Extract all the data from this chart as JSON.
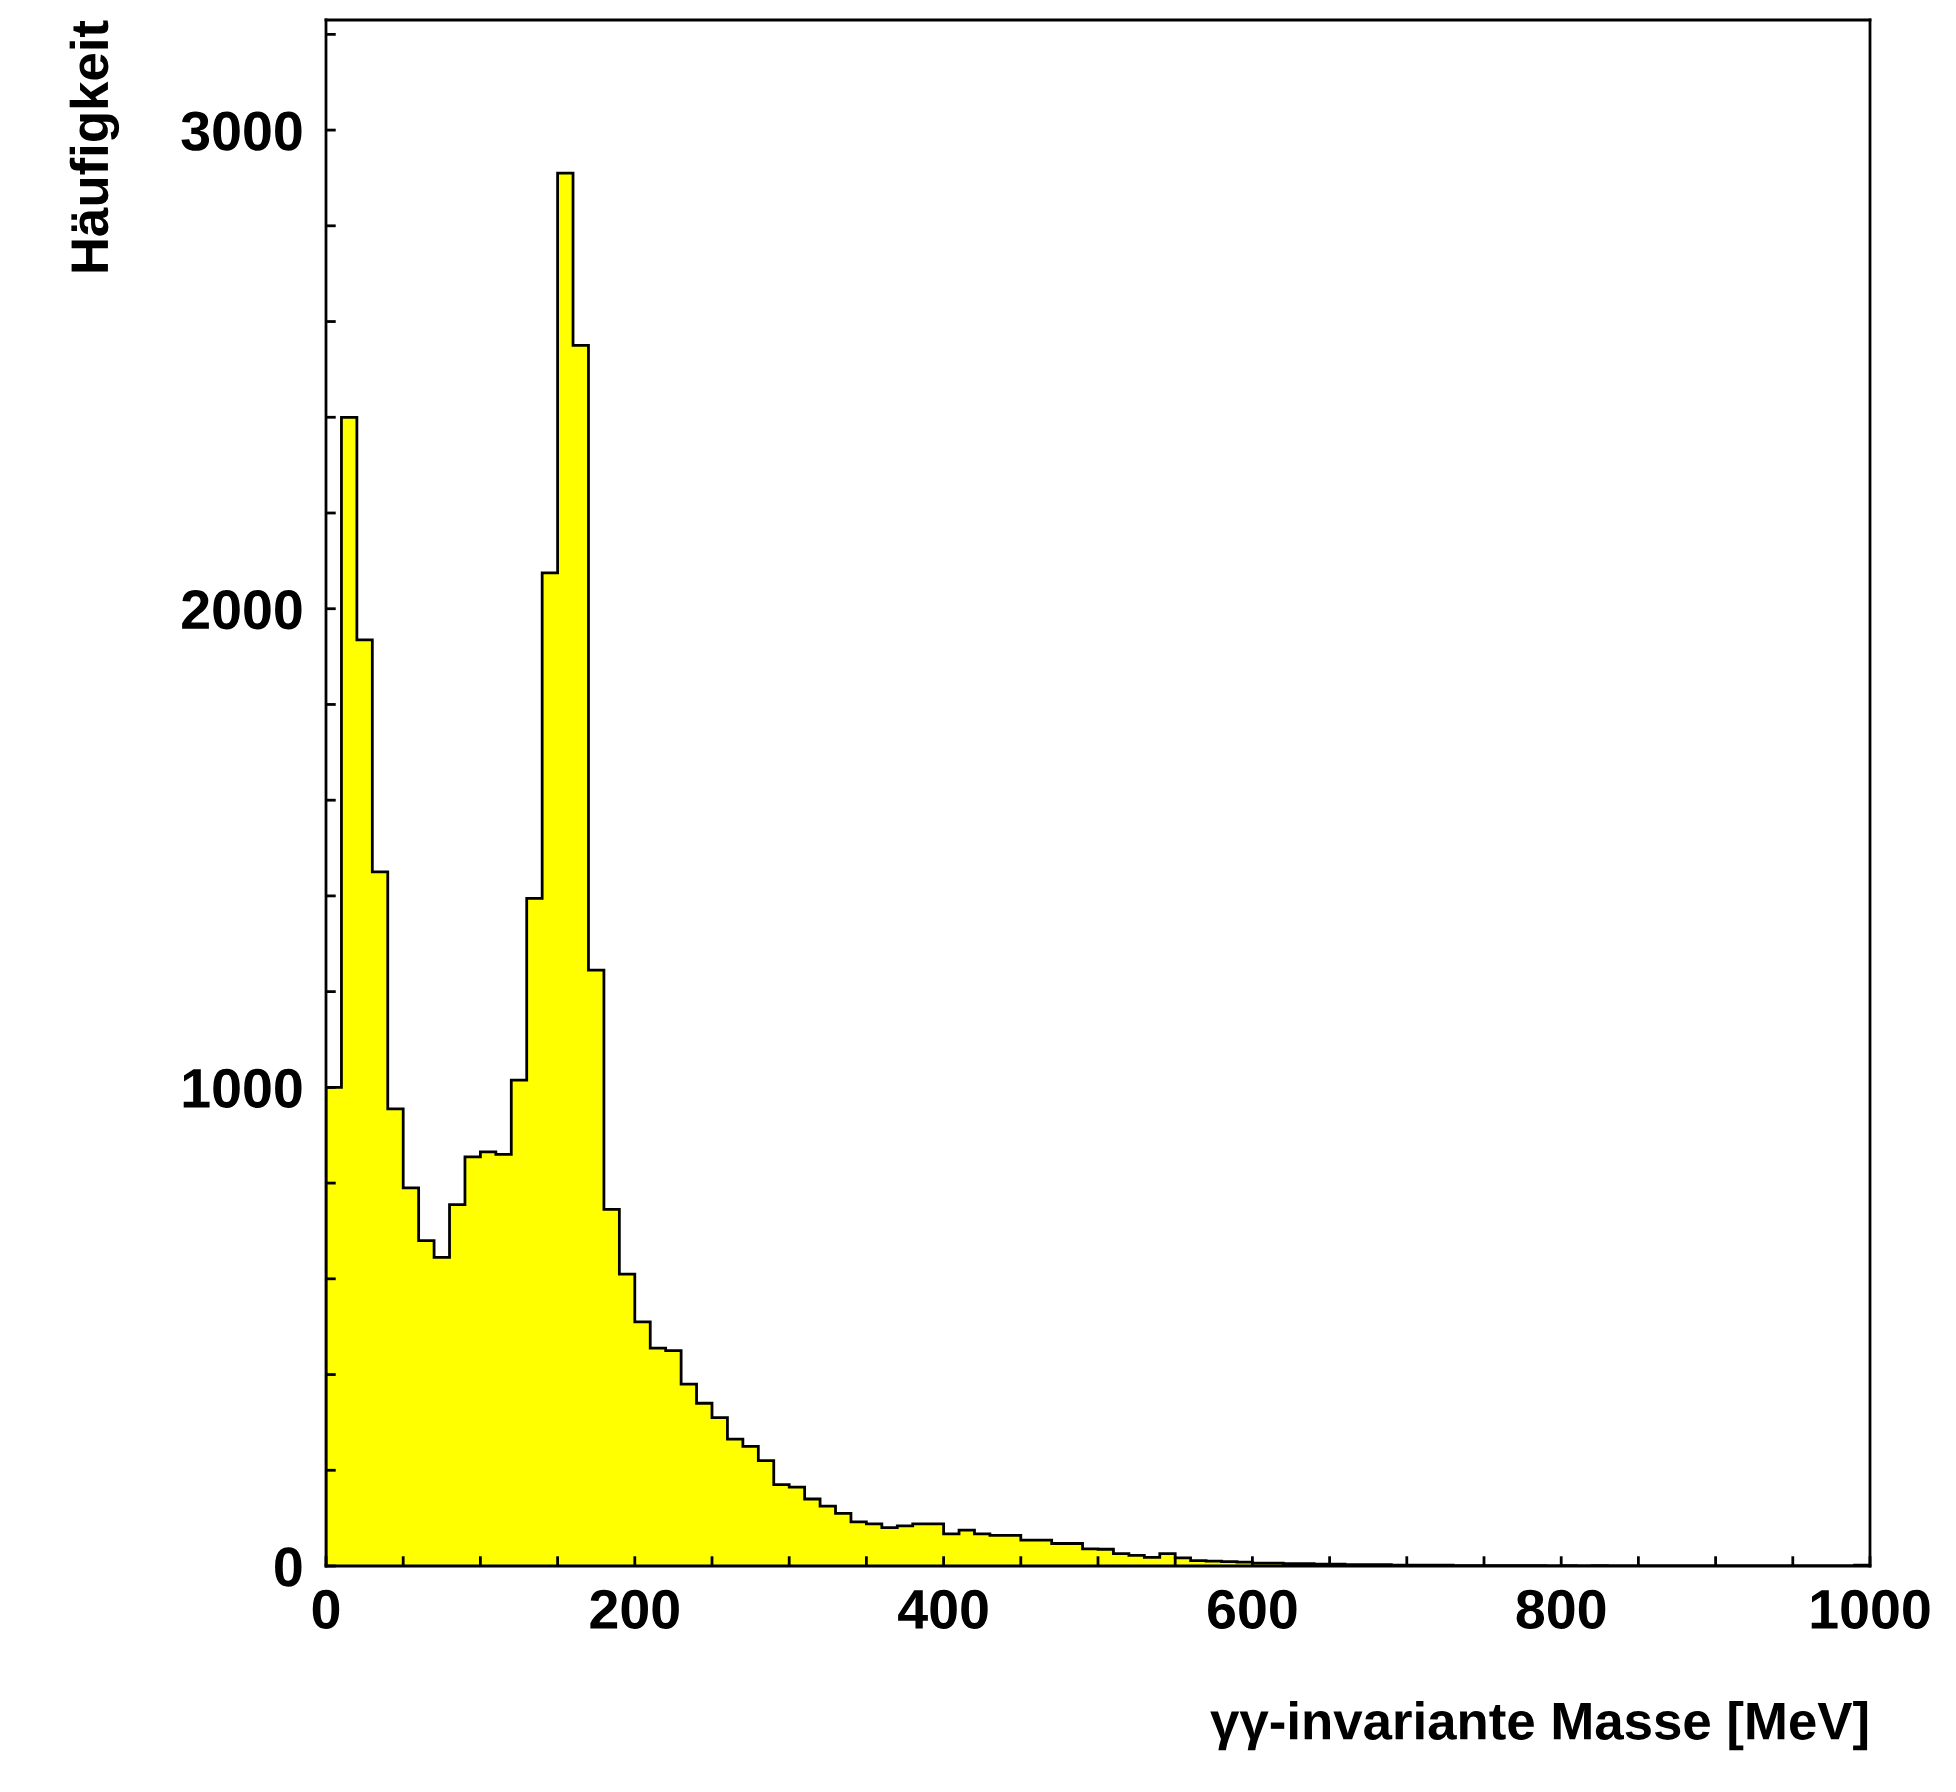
{
  "chart_data": {
    "type": "histogram",
    "xlabel": "γγ-invariante Masse [MeV]",
    "ylabel": "Häufigkeit",
    "bins": [
      0,
      10,
      20,
      30,
      40,
      50,
      60,
      70,
      80,
      90,
      100,
      110,
      120,
      130,
      140,
      150,
      160,
      170,
      180,
      190,
      200,
      210,
      220,
      230,
      240,
      250,
      260,
      270,
      280,
      290,
      300,
      310,
      320,
      330,
      340,
      350,
      360,
      370,
      380,
      390,
      400,
      410,
      420,
      430,
      440,
      450,
      460,
      470,
      480,
      490,
      500,
      510,
      520,
      530,
      540,
      550,
      560,
      570,
      580,
      590,
      600,
      610,
      620,
      630,
      640,
      650,
      660,
      670,
      680,
      690,
      700,
      710,
      720,
      730,
      740,
      750,
      760,
      770,
      780,
      790,
      800,
      810,
      820,
      830,
      840,
      850,
      860,
      870,
      880,
      890,
      900,
      910,
      920,
      930,
      940,
      950,
      960,
      970,
      980,
      990,
      1000
    ],
    "values": [
      1000,
      2400,
      1935,
      1450,
      955,
      790,
      680,
      645,
      755,
      855,
      865,
      860,
      1015,
      1395,
      2075,
      2910,
      2550,
      1245,
      745,
      610,
      510,
      455,
      450,
      380,
      340,
      310,
      265,
      250,
      220,
      170,
      165,
      140,
      125,
      110,
      92,
      88,
      80,
      84,
      88,
      88,
      67,
      75,
      67,
      64,
      64,
      54,
      54,
      47,
      47,
      36,
      35,
      26,
      22,
      18,
      26,
      17,
      11,
      10,
      9,
      8,
      6,
      6,
      5,
      5,
      4,
      4,
      3,
      3,
      3,
      2,
      2,
      2,
      2,
      1,
      1,
      1,
      1,
      1,
      1,
      0,
      1,
      0,
      1,
      0,
      0,
      0,
      0,
      0,
      0,
      0,
      0,
      0,
      0,
      0,
      0,
      0,
      0,
      0,
      0,
      2
    ],
    "color": "#ffff00",
    "xlim": [
      0,
      1000
    ],
    "ylim": [
      0,
      3230
    ],
    "xticks": [
      0,
      {
        "value": 50,
        "label": null
      },
      {
        "value": 100,
        "label": null
      },
      {
        "value": 150,
        "label": null
      },
      200,
      {
        "value": 250,
        "label": null
      },
      {
        "value": 300,
        "label": null
      },
      {
        "value": 350,
        "label": null
      },
      400,
      {
        "value": 450,
        "label": null
      },
      {
        "value": 500,
        "label": null
      },
      {
        "value": 550,
        "label": null
      },
      600,
      {
        "value": 650,
        "label": null
      },
      {
        "value": 700,
        "label": null
      },
      {
        "value": 750,
        "label": null
      },
      800,
      {
        "value": 850,
        "label": null
      },
      {
        "value": 900,
        "label": null
      },
      {
        "value": 950,
        "label": null
      },
      1000
    ],
    "yticks": [
      0,
      {
        "value": 200,
        "label": null
      },
      {
        "value": 400,
        "label": null
      },
      {
        "value": 600,
        "label": null
      },
      {
        "value": 800,
        "label": null
      },
      1000,
      {
        "value": 1200,
        "label": null
      },
      {
        "value": 1400,
        "label": null
      },
      {
        "value": 1600,
        "label": null
      },
      {
        "value": 1800,
        "label": null
      },
      2000,
      {
        "value": 2200,
        "label": null
      },
      {
        "value": 2400,
        "label": null
      },
      {
        "value": 2600,
        "label": null
      },
      {
        "value": 2800,
        "label": null
      },
      3000,
      {
        "value": 3200,
        "label": null
      }
    ],
    "grid": false,
    "legend": false
  }
}
